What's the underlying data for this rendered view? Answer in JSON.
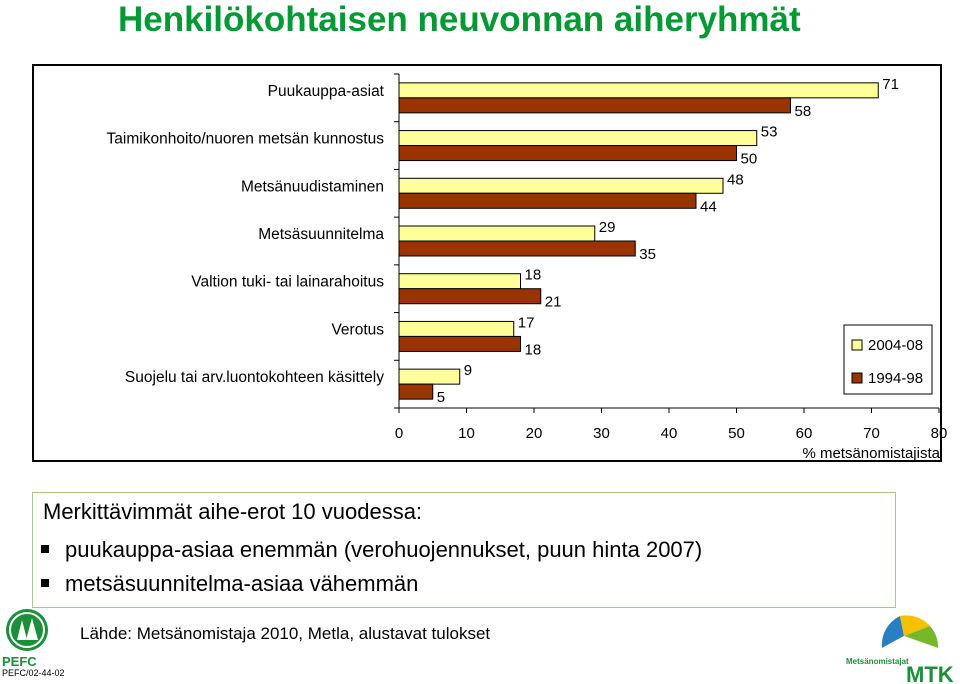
{
  "title": "Henkilökohtaisen neuvonnan aiheryhmät",
  "chart_data": {
    "type": "bar",
    "orientation": "horizontal",
    "categories": [
      "Puukauppa-asiat",
      "Taimikonhoito/nuoren metsän kunnostus",
      "Metsänuudistaminen",
      "Metsäsuunnitelma",
      "Valtion tuki- tai lainarahoitus",
      "Verotus",
      "Suojelu tai arv.luontokohteen käsittely"
    ],
    "series": [
      {
        "name": "2004-08",
        "values": [
          71,
          53,
          48,
          29,
          18,
          17,
          9
        ],
        "color": "#FFFF99"
      },
      {
        "name": "1994-98",
        "values": [
          58,
          50,
          44,
          35,
          21,
          18,
          5
        ],
        "color": "#993300"
      }
    ],
    "xlim": [
      0,
      80
    ],
    "xticks": [
      "0",
      "10",
      "20",
      "30",
      "40",
      "50",
      "60",
      "70",
      "80"
    ],
    "xlabel": "% metsänomistajista",
    "legend_position": "right",
    "grid": false
  },
  "notes": {
    "heading": "Merkittävimmät aihe-erot 10 vuodessa:",
    "bullets": [
      "puukauppa-asiaa enemmän (verohuojennukset, puun hinta 2007)",
      "metsäsuunnitelma-asiaa vähemmän"
    ]
  },
  "source": "Lähde: Metsänomistaja 2010, Metla, alustavat tulokset",
  "logos": {
    "pefc_text": "PEFC",
    "pefc_code": "PEFC/02-44-02",
    "mtk_caption": "Metsänomistajat",
    "mtk_text": "MTK"
  }
}
